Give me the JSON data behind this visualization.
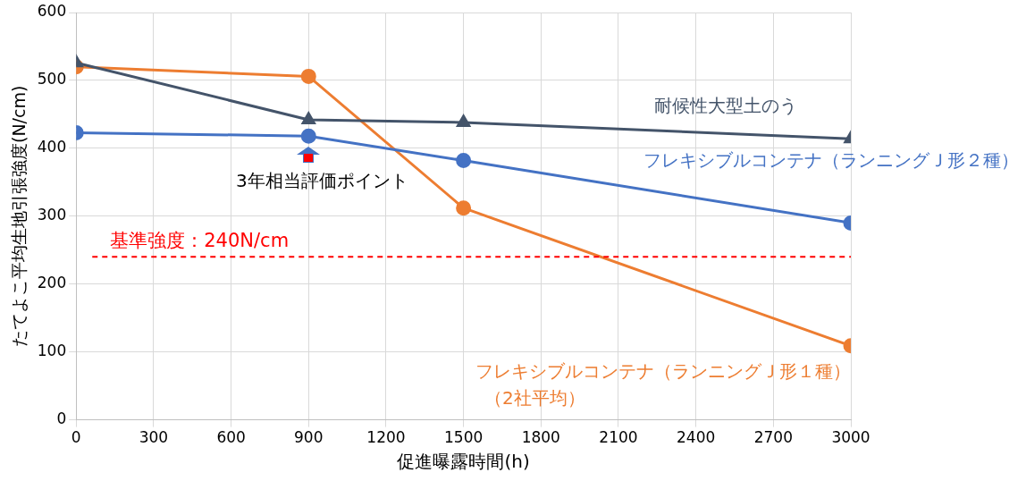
{
  "chart_data": {
    "type": "line",
    "xlabel": "促進曝露時間(h)",
    "ylabel": "たてよこ平均生地引張強度(N/cm)",
    "x": [
      0,
      900,
      1500,
      3000
    ],
    "series": [
      {
        "name": "耐候性大型土のう",
        "color": "#44546a",
        "marker": "triangle",
        "values": [
          526,
          442,
          438,
          414
        ]
      },
      {
        "name": "フレキシブルコンテナ（ランニングＪ形２種）",
        "color": "#4472c4",
        "marker": "circle",
        "values": [
          423,
          418,
          382,
          290
        ]
      },
      {
        "name": "フレキシブルコンテナ（ランニングＪ形１種）（2社平均）",
        "color": "#ed7d31",
        "marker": "circle",
        "values": [
          520,
          506,
          312,
          109
        ]
      }
    ],
    "xlim": [
      0,
      3000
    ],
    "xticks": [
      0,
      300,
      600,
      900,
      1200,
      1500,
      1800,
      2100,
      2400,
      2700,
      3000
    ],
    "ylim": [
      0,
      600
    ],
    "yticks": [
      0,
      100,
      200,
      300,
      400,
      500,
      600
    ],
    "grid": true,
    "legend": false,
    "ref_lines": [
      {
        "axis": "y",
        "value": 240,
        "label": "基準強度：240N/cm",
        "color": "#ff0000",
        "line_style": "dashed"
      }
    ],
    "annotations": [
      {
        "text": "3年相当評価ポイント",
        "x": 900,
        "y": 418
      }
    ]
  }
}
